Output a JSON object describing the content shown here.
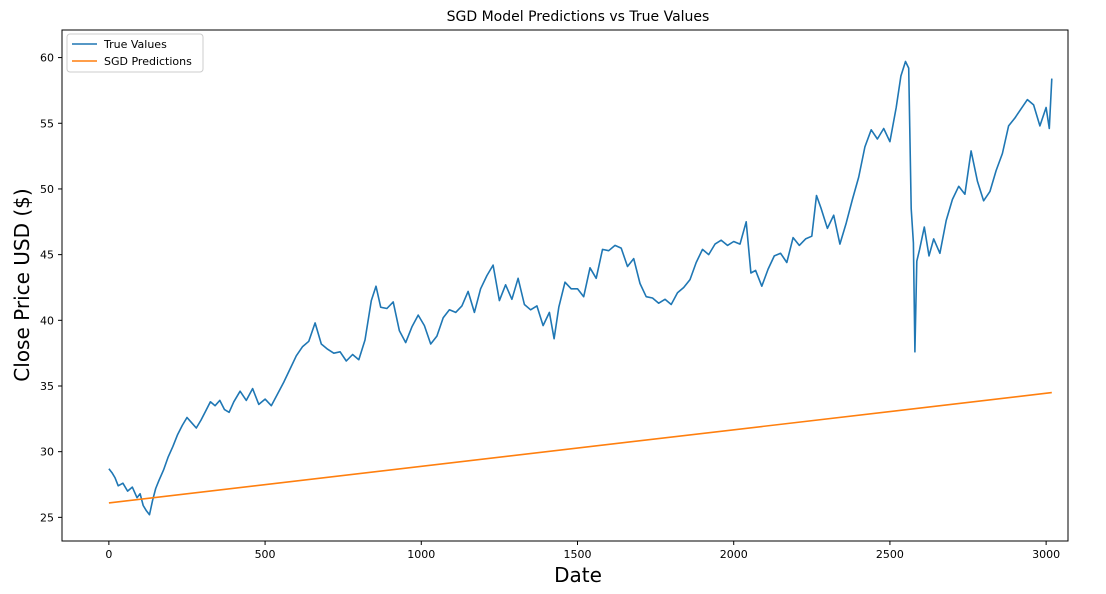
{
  "chart_data": {
    "type": "line",
    "title": "SGD Model Predictions vs True Values",
    "xlabel": "Date",
    "ylabel": "Close Price USD ($)",
    "xlim": [
      -150,
      3070
    ],
    "ylim": [
      23.2,
      62.1
    ],
    "xticks": [
      0,
      500,
      1000,
      1500,
      2000,
      2500,
      3000
    ],
    "yticks": [
      25,
      30,
      35,
      40,
      45,
      50,
      55,
      60
    ],
    "grid": false,
    "legend_position": "top-left",
    "series": [
      {
        "name": "True Values",
        "color": "#1f77b4",
        "points": [
          [
            0,
            28.7
          ],
          [
            10,
            28.4
          ],
          [
            20,
            28.0
          ],
          [
            30,
            27.4
          ],
          [
            45,
            27.6
          ],
          [
            60,
            27.0
          ],
          [
            75,
            27.3
          ],
          [
            90,
            26.5
          ],
          [
            100,
            26.8
          ],
          [
            110,
            25.9
          ],
          [
            120,
            25.5
          ],
          [
            130,
            25.2
          ],
          [
            140,
            26.3
          ],
          [
            150,
            27.2
          ],
          [
            160,
            27.8
          ],
          [
            175,
            28.6
          ],
          [
            190,
            29.6
          ],
          [
            205,
            30.4
          ],
          [
            220,
            31.3
          ],
          [
            235,
            32.0
          ],
          [
            250,
            32.6
          ],
          [
            265,
            32.2
          ],
          [
            280,
            31.8
          ],
          [
            295,
            32.4
          ],
          [
            310,
            33.1
          ],
          [
            325,
            33.8
          ],
          [
            340,
            33.5
          ],
          [
            355,
            33.9
          ],
          [
            370,
            33.2
          ],
          [
            385,
            33.0
          ],
          [
            400,
            33.8
          ],
          [
            420,
            34.6
          ],
          [
            440,
            33.9
          ],
          [
            460,
            34.8
          ],
          [
            480,
            33.6
          ],
          [
            500,
            34.0
          ],
          [
            520,
            33.5
          ],
          [
            540,
            34.4
          ],
          [
            560,
            35.3
          ],
          [
            580,
            36.3
          ],
          [
            600,
            37.3
          ],
          [
            620,
            38.0
          ],
          [
            640,
            38.4
          ],
          [
            660,
            39.8
          ],
          [
            680,
            38.2
          ],
          [
            700,
            37.8
          ],
          [
            720,
            37.5
          ],
          [
            740,
            37.6
          ],
          [
            760,
            36.9
          ],
          [
            780,
            37.4
          ],
          [
            800,
            37.0
          ],
          [
            820,
            38.5
          ],
          [
            840,
            41.5
          ],
          [
            855,
            42.6
          ],
          [
            870,
            41.0
          ],
          [
            890,
            40.9
          ],
          [
            910,
            41.4
          ],
          [
            930,
            39.2
          ],
          [
            950,
            38.3
          ],
          [
            970,
            39.5
          ],
          [
            990,
            40.4
          ],
          [
            1010,
            39.6
          ],
          [
            1030,
            38.2
          ],
          [
            1050,
            38.8
          ],
          [
            1070,
            40.2
          ],
          [
            1090,
            40.8
          ],
          [
            1110,
            40.6
          ],
          [
            1130,
            41.1
          ],
          [
            1150,
            42.2
          ],
          [
            1170,
            40.6
          ],
          [
            1190,
            42.4
          ],
          [
            1210,
            43.4
          ],
          [
            1230,
            44.2
          ],
          [
            1250,
            41.5
          ],
          [
            1270,
            42.7
          ],
          [
            1290,
            41.6
          ],
          [
            1310,
            43.2
          ],
          [
            1330,
            41.2
          ],
          [
            1350,
            40.8
          ],
          [
            1370,
            41.1
          ],
          [
            1390,
            39.6
          ],
          [
            1410,
            40.6
          ],
          [
            1425,
            38.6
          ],
          [
            1440,
            41.0
          ],
          [
            1460,
            42.9
          ],
          [
            1480,
            42.4
          ],
          [
            1500,
            42.4
          ],
          [
            1520,
            41.8
          ],
          [
            1540,
            44.0
          ],
          [
            1560,
            43.2
          ],
          [
            1580,
            45.4
          ],
          [
            1600,
            45.3
          ],
          [
            1620,
            45.7
          ],
          [
            1640,
            45.5
          ],
          [
            1660,
            44.1
          ],
          [
            1680,
            44.7
          ],
          [
            1700,
            42.8
          ],
          [
            1720,
            41.8
          ],
          [
            1740,
            41.7
          ],
          [
            1760,
            41.3
          ],
          [
            1780,
            41.6
          ],
          [
            1800,
            41.2
          ],
          [
            1820,
            42.1
          ],
          [
            1840,
            42.5
          ],
          [
            1860,
            43.1
          ],
          [
            1880,
            44.4
          ],
          [
            1900,
            45.4
          ],
          [
            1920,
            45.0
          ],
          [
            1940,
            45.8
          ],
          [
            1960,
            46.1
          ],
          [
            1980,
            45.7
          ],
          [
            2000,
            46.0
          ],
          [
            2020,
            45.8
          ],
          [
            2040,
            47.5
          ],
          [
            2055,
            43.6
          ],
          [
            2070,
            43.8
          ],
          [
            2090,
            42.6
          ],
          [
            2110,
            43.9
          ],
          [
            2130,
            44.9
          ],
          [
            2150,
            45.1
          ],
          [
            2170,
            44.4
          ],
          [
            2190,
            46.3
          ],
          [
            2210,
            45.7
          ],
          [
            2230,
            46.2
          ],
          [
            2250,
            46.4
          ],
          [
            2265,
            49.5
          ],
          [
            2280,
            48.5
          ],
          [
            2300,
            47.0
          ],
          [
            2320,
            48.0
          ],
          [
            2340,
            45.8
          ],
          [
            2360,
            47.4
          ],
          [
            2380,
            49.2
          ],
          [
            2400,
            50.9
          ],
          [
            2420,
            53.2
          ],
          [
            2440,
            54.5
          ],
          [
            2460,
            53.8
          ],
          [
            2480,
            54.6
          ],
          [
            2500,
            53.6
          ],
          [
            2520,
            56.2
          ],
          [
            2535,
            58.6
          ],
          [
            2550,
            59.7
          ],
          [
            2560,
            59.2
          ],
          [
            2568,
            48.5
          ],
          [
            2575,
            45.9
          ],
          [
            2580,
            37.6
          ],
          [
            2586,
            44.5
          ],
          [
            2595,
            45.4
          ],
          [
            2610,
            47.1
          ],
          [
            2625,
            44.9
          ],
          [
            2640,
            46.2
          ],
          [
            2660,
            45.1
          ],
          [
            2680,
            47.6
          ],
          [
            2700,
            49.2
          ],
          [
            2720,
            50.2
          ],
          [
            2740,
            49.6
          ],
          [
            2760,
            52.9
          ],
          [
            2780,
            50.6
          ],
          [
            2800,
            49.1
          ],
          [
            2820,
            49.8
          ],
          [
            2840,
            51.4
          ],
          [
            2860,
            52.7
          ],
          [
            2880,
            54.8
          ],
          [
            2900,
            55.4
          ],
          [
            2920,
            56.1
          ],
          [
            2940,
            56.8
          ],
          [
            2960,
            56.4
          ],
          [
            2980,
            54.8
          ],
          [
            3000,
            56.2
          ],
          [
            3010,
            54.6
          ],
          [
            3018,
            58.4
          ]
        ]
      },
      {
        "name": "SGD Predictions",
        "color": "#ff7f0e",
        "points": [
          [
            0,
            26.1
          ],
          [
            3018,
            34.5
          ]
        ]
      }
    ]
  }
}
